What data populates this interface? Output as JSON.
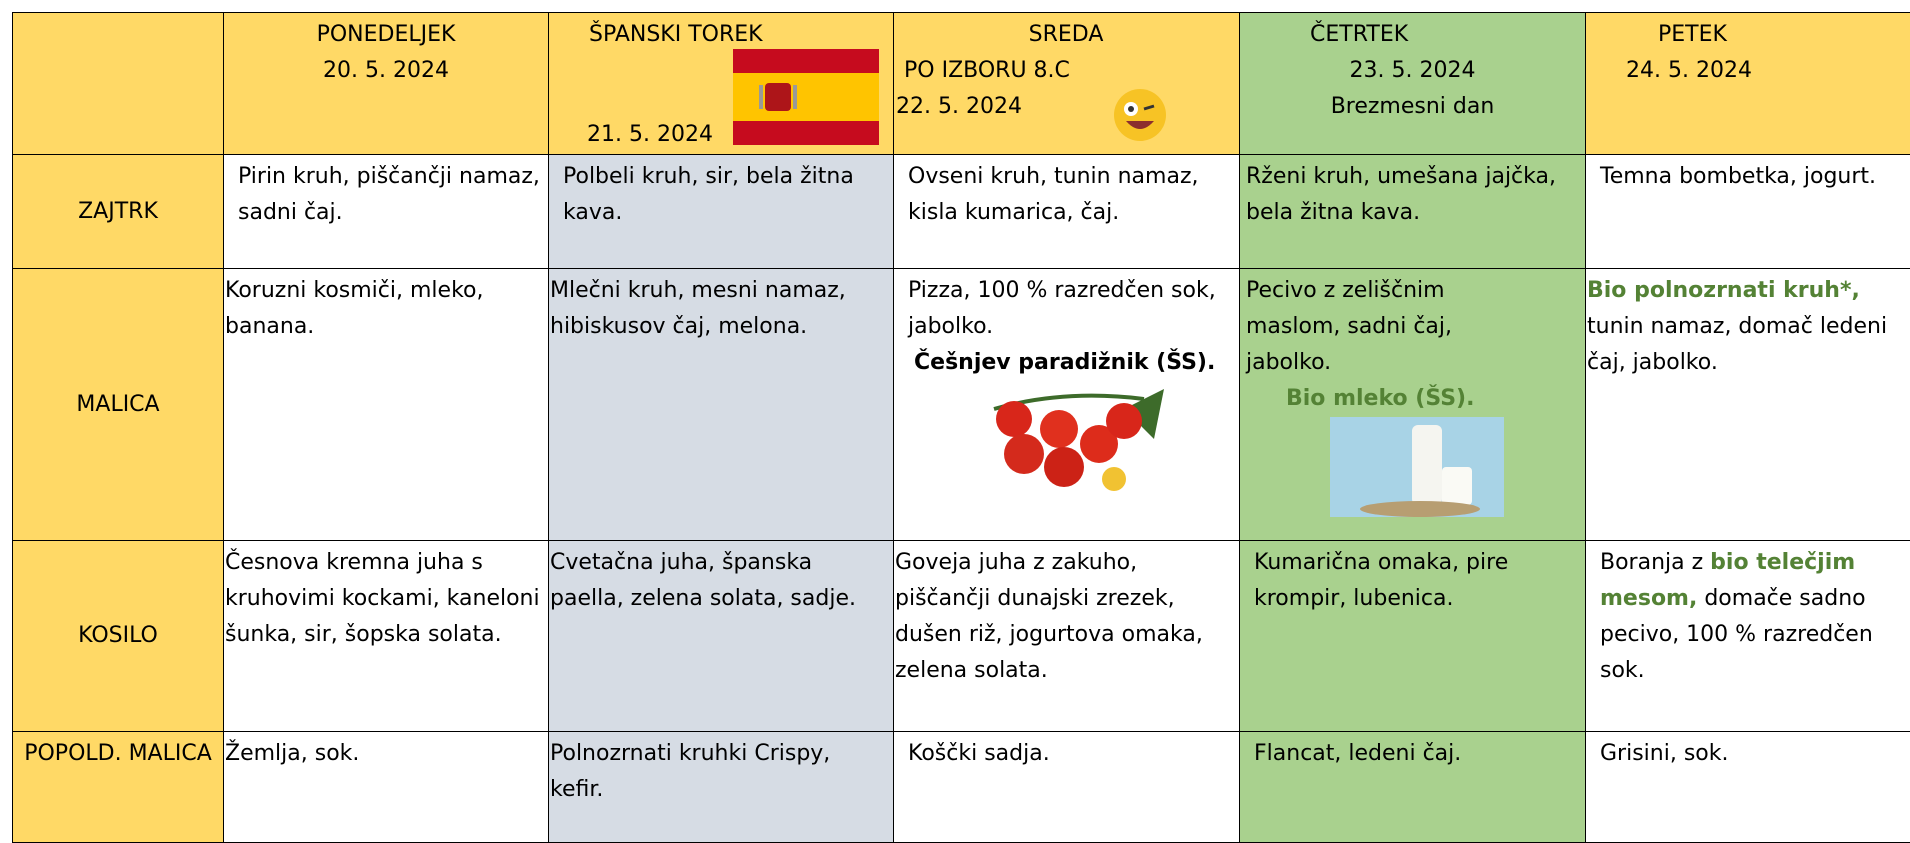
{
  "days": [
    {
      "name": "PONEDELJEK",
      "date": "20. 5. 2024"
    },
    {
      "name": "ŠPANSKI TOREK",
      "date": "21. 5. 2024"
    },
    {
      "name": "SREDA",
      "note": "PO IZBORU 8.C",
      "date": "22. 5. 2024"
    },
    {
      "name": "ČETRTEK",
      "date": "23. 5. 2024",
      "note": "Brezmesni dan"
    },
    {
      "name": "PETEK",
      "date": "24. 5. 2024"
    }
  ],
  "rows": [
    {
      "label": "ZAJTRK",
      "cells": [
        [
          "Pirin kruh, piščančji namaz, sadni čaj."
        ],
        [
          "Polbeli kruh, sir, bela žitna kava."
        ],
        [
          "Ovseni kruh, tunin namaz, kisla kumarica, čaj."
        ],
        [
          "Rženi kruh, umešana jajčka, bela žitna kava."
        ],
        [
          "Temna bombetka, jogurt."
        ]
      ]
    },
    {
      "label": "MALICA",
      "cells": [
        [
          "Koruzni kosmiči, mleko, banana."
        ],
        [
          "Mlečni kruh, mesni namaz, hibiskusov čaj, melona."
        ],
        [
          "Pizza, 100 % razredčen sok, jabolko.",
          "Češnjev paradižnik (ŠS)."
        ],
        [
          "Pecivo z zeliščnim maslom, sadni čaj, jabolko.",
          "Bio mleko (ŠS)."
        ],
        [
          "Bio polnozrnati kruh*,",
          " tunin namaz, domač ledeni čaj, jabolko."
        ]
      ]
    },
    {
      "label": "KOSILO",
      "cells": [
        [
          "Česnova kremna juha s kruhovimi kockami, kaneloni šunka, sir, šopska solata."
        ],
        [
          "Cvetačna juha, španska paella, zelena solata, sadje."
        ],
        [
          "Goveja juha z zakuho, piščančji dunajski zrezek, dušen riž, jogurtova omaka, zelena solata."
        ],
        [
          "Kumarična omaka, pire krompir, lubenica."
        ],
        [
          "Boranja z ",
          "bio telečjim mesom,",
          " domače sadno pecivo, 100 % razredčen sok."
        ]
      ]
    },
    {
      "label": "POPOLD. MALICA",
      "cells": [
        [
          "Žemlja, sok."
        ],
        [
          "Polnozrnati kruhki Crispy, kefir."
        ],
        [
          "Koščki sadja."
        ],
        [
          "Flancat, ledeni čaj."
        ],
        [
          "Grisini, sok."
        ]
      ]
    }
  ]
}
